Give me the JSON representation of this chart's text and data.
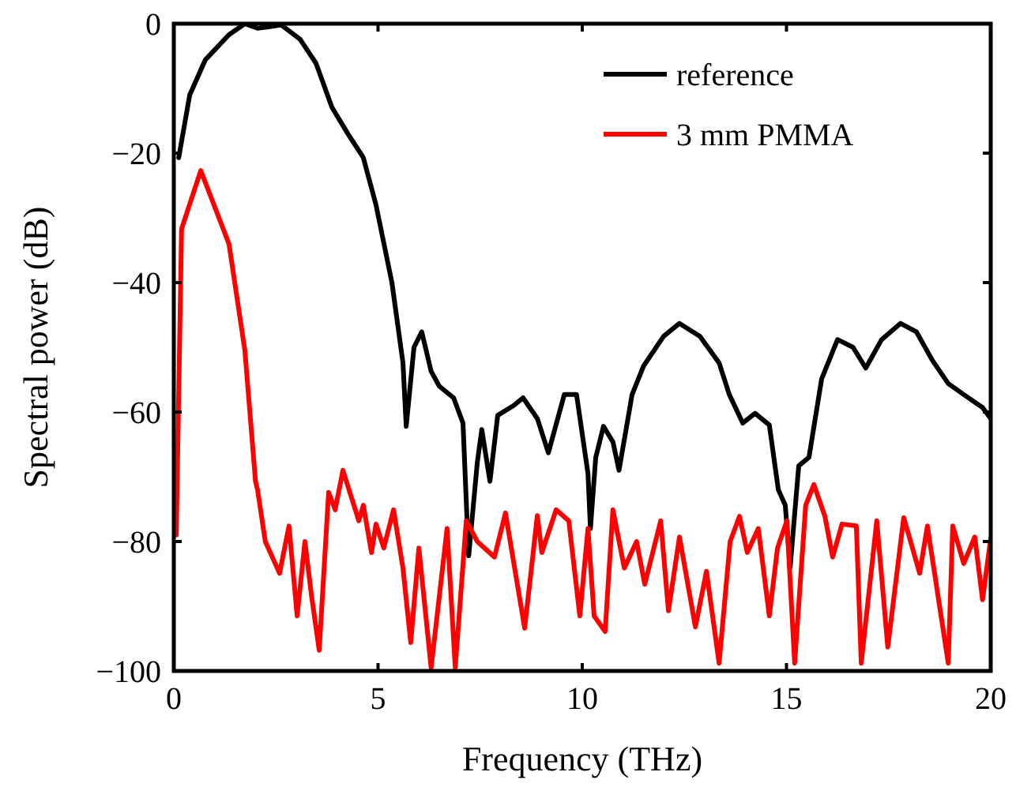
{
  "chart_data": {
    "type": "line",
    "xlabel": "Frequency (THz)",
    "ylabel": "Spectral power (dB)",
    "xlim": [
      0,
      20
    ],
    "ylim": [
      -100,
      0
    ],
    "xticks": [
      0,
      5,
      10,
      15,
      20
    ],
    "yticks": [
      0,
      -20,
      -40,
      -60,
      -80,
      -100
    ],
    "grid": false,
    "legend": "top right",
    "marker": "none",
    "line_style": "solid",
    "series": [
      {
        "name": "reference",
        "color": "#000000",
        "x": [
          0.12,
          0.39,
          0.77,
          1.35,
          1.74,
          2.05,
          2.32,
          2.63,
          3.09,
          3.48,
          3.87,
          4.26,
          4.64,
          4.95,
          5.34,
          5.61,
          5.69,
          5.88,
          6.07,
          6.3,
          6.5,
          6.85,
          7.08,
          7.18,
          7.22,
          7.43,
          7.54,
          7.74,
          7.93,
          8.32,
          8.55,
          8.9,
          9.17,
          9.56,
          9.86,
          10.14,
          10.2,
          10.33,
          10.52,
          10.75,
          10.9,
          11.22,
          11.5,
          11.99,
          12.38,
          12.88,
          13.35,
          13.6,
          13.93,
          14.23,
          14.58,
          14.8,
          14.97,
          15.09,
          15.3,
          15.55,
          15.86,
          16.25,
          16.63,
          16.94,
          17.33,
          17.79,
          18.18,
          18.57,
          18.96,
          19.34,
          19.8,
          20
        ],
        "values": [
          -20.7,
          -11,
          -5.6,
          -1.7,
          0,
          -0.7,
          -0.5,
          -0.2,
          -2.4,
          -6.1,
          -12.9,
          -17,
          -20.7,
          -28,
          -40,
          -52.4,
          -62.2,
          -50,
          -47.6,
          -53.7,
          -56,
          -57.8,
          -61.7,
          -76.8,
          -82.2,
          -67.8,
          -62.7,
          -70.7,
          -60.5,
          -59,
          -57.8,
          -61,
          -66.3,
          -57.3,
          -57.3,
          -69.5,
          -78,
          -67,
          -62.2,
          -64.6,
          -69,
          -57.3,
          -52.9,
          -48.3,
          -46.3,
          -48.3,
          -52.4,
          -57.3,
          -61.7,
          -60.2,
          -62,
          -72,
          -74.4,
          -84,
          -68.3,
          -67,
          -54.9,
          -48.8,
          -50,
          -53.2,
          -48.8,
          -46.3,
          -47.6,
          -52,
          -55.6,
          -57.3,
          -59.3,
          -61
        ]
      },
      {
        "name": "3 mm PMMA",
        "color": "#ff0000",
        "x": [
          0.06,
          0.19,
          0.66,
          1.35,
          1.74,
          2.0,
          2.05,
          2.24,
          2.59,
          2.82,
          3.02,
          3.21,
          3.37,
          3.56,
          3.79,
          3.95,
          4.14,
          4.53,
          4.64,
          4.84,
          4.95,
          5.14,
          5.38,
          5.61,
          5.8,
          6.0,
          6.3,
          6.69,
          6.89,
          7.16,
          7.43,
          7.85,
          8.12,
          8.59,
          8.9,
          9.01,
          9.36,
          9.67,
          9.94,
          10.14,
          10.29,
          10.56,
          10.75,
          11.03,
          11.33,
          11.53,
          11.92,
          12.11,
          12.38,
          12.77,
          13.04,
          13.35,
          13.62,
          13.85,
          14.04,
          14.31,
          14.58,
          14.78,
          15.01,
          15.2,
          15.47,
          15.67,
          15.94,
          16.13,
          16.36,
          16.71,
          16.83,
          17.21,
          17.48,
          17.87,
          18.26,
          18.45,
          18.96,
          19.07,
          19.34,
          19.61,
          19.8,
          20
        ],
        "values": [
          -79,
          -31.7,
          -22.7,
          -34,
          -50.5,
          -70.7,
          -72,
          -80,
          -84.9,
          -77.6,
          -91.5,
          -80,
          -88.3,
          -96.8,
          -72.4,
          -75.1,
          -69,
          -76.8,
          -74.4,
          -81.7,
          -77.3,
          -81,
          -75.1,
          -84.1,
          -95.6,
          -81,
          -99.5,
          -78,
          -99.5,
          -76.8,
          -80,
          -82.4,
          -75.6,
          -93.4,
          -76,
          -81.7,
          -75.1,
          -76.8,
          -91.5,
          -78,
          -91.5,
          -93.9,
          -75.1,
          -84.1,
          -80,
          -86.6,
          -76.8,
          -90.7,
          -79.3,
          -93.2,
          -84.6,
          -98.8,
          -80,
          -76.1,
          -81.7,
          -78,
          -91.5,
          -81,
          -76.8,
          -98.8,
          -74.4,
          -71.2,
          -76.1,
          -82.4,
          -77.3,
          -77.6,
          -98.8,
          -76.8,
          -96.3,
          -76.3,
          -84.9,
          -77.6,
          -98.8,
          -77.6,
          -83.4,
          -79.3,
          -89,
          -79.5
        ]
      }
    ]
  }
}
